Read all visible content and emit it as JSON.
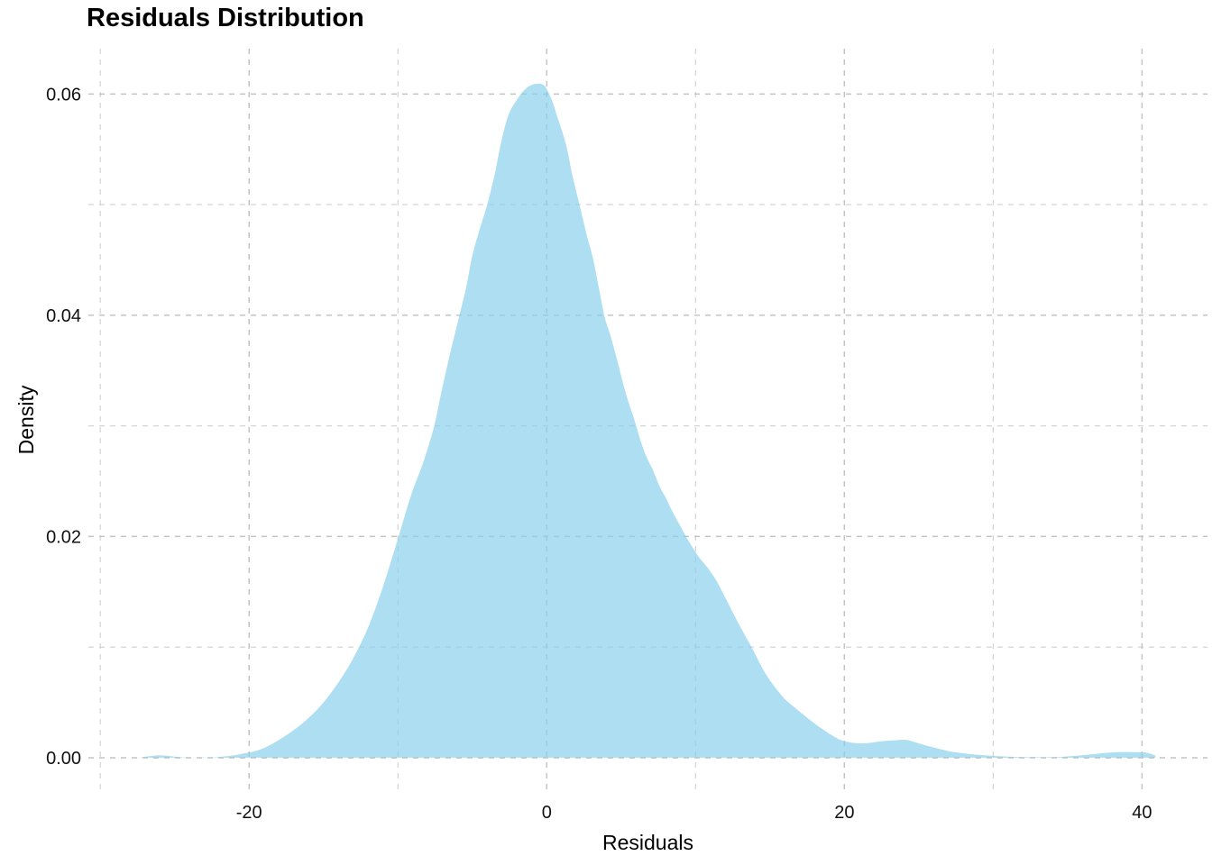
{
  "chart": {
    "title": "Residuals Distribution",
    "xlabel": "Residuals",
    "ylabel": "Density"
  },
  "chart_data": {
    "type": "area",
    "title": "Residuals Distribution",
    "xlabel": "Residuals",
    "ylabel": "Density",
    "legend": false,
    "grid": "dashed-major-and-minor",
    "background_color": "#ffffff",
    "gridline_color": "#c4c4c4",
    "fill_color": "#87CEEB",
    "fill_opacity": 0.68,
    "x_ticks": [
      -20,
      0,
      20,
      40
    ],
    "x_minor_ticks": [
      -30,
      -10,
      10,
      30
    ],
    "y_ticks": [
      0,
      0.02,
      0.04,
      0.06
    ],
    "y_tick_labels": [
      "0.00",
      "0.02",
      "0.04",
      "0.06"
    ],
    "y_minor_ticks": [
      0.01,
      0.03,
      0.05
    ],
    "xlim": [
      -30.8,
      44.4
    ],
    "ylim": [
      -0.0031,
      0.0641
    ],
    "peak": {
      "x": -0.8,
      "density": 0.061
    },
    "points": [
      [
        -27.3,
        2e-05
      ],
      [
        -26.9,
        0.0001
      ],
      [
        -26.3,
        0.0002
      ],
      [
        -25.7,
        0.0002
      ],
      [
        -25.0,
        0.0001
      ],
      [
        -24.3,
        3e-05
      ],
      [
        -23.4,
        2e-05
      ],
      [
        -22.4,
        4e-05
      ],
      [
        -21.8,
        0.0001
      ],
      [
        -21.0,
        0.00022
      ],
      [
        -20.3,
        0.0004
      ],
      [
        -19.6,
        0.0006
      ],
      [
        -18.8,
        0.001
      ],
      [
        -18.0,
        0.0016
      ],
      [
        -17.0,
        0.0025
      ],
      [
        -16.0,
        0.0036
      ],
      [
        -15.0,
        0.005
      ],
      [
        -14.0,
        0.0068
      ],
      [
        -13.0,
        0.009
      ],
      [
        -12.0,
        0.0118
      ],
      [
        -11.0,
        0.0155
      ],
      [
        -10.0,
        0.0198
      ],
      [
        -9.1,
        0.0238
      ],
      [
        -8.3,
        0.0267
      ],
      [
        -7.6,
        0.0298
      ],
      [
        -7.1,
        0.0329
      ],
      [
        -6.5,
        0.0365
      ],
      [
        -5.9,
        0.0398
      ],
      [
        -5.4,
        0.0426
      ],
      [
        -5.0,
        0.0454
      ],
      [
        -4.5,
        0.0478
      ],
      [
        -4.0,
        0.05
      ],
      [
        -3.5,
        0.0527
      ],
      [
        -3.1,
        0.0554
      ],
      [
        -2.6,
        0.058
      ],
      [
        -2.0,
        0.0595
      ],
      [
        -1.4,
        0.0605
      ],
      [
        -0.8,
        0.0609
      ],
      [
        -0.2,
        0.0608
      ],
      [
        0.3,
        0.0596
      ],
      [
        0.7,
        0.058
      ],
      [
        1.3,
        0.0554
      ],
      [
        1.7,
        0.0528
      ],
      [
        2.2,
        0.05
      ],
      [
        2.7,
        0.0472
      ],
      [
        3.1,
        0.0452
      ],
      [
        3.5,
        0.0425
      ],
      [
        3.9,
        0.0398
      ],
      [
        4.3,
        0.0381
      ],
      [
        4.8,
        0.0356
      ],
      [
        5.3,
        0.033
      ],
      [
        5.9,
        0.0305
      ],
      [
        6.3,
        0.0287
      ],
      [
        6.7,
        0.0272
      ],
      [
        7.1,
        0.0261
      ],
      [
        7.6,
        0.0245
      ],
      [
        8.0,
        0.0235
      ],
      [
        8.5,
        0.0221
      ],
      [
        9.0,
        0.0209
      ],
      [
        9.4,
        0.0199
      ],
      [
        9.9,
        0.0188
      ],
      [
        10.3,
        0.018
      ],
      [
        10.8,
        0.0172
      ],
      [
        11.4,
        0.016
      ],
      [
        12.1,
        0.0142
      ],
      [
        12.9,
        0.0121
      ],
      [
        13.8,
        0.0099
      ],
      [
        14.7,
        0.0076
      ],
      [
        15.8,
        0.0056
      ],
      [
        16.7,
        0.0045
      ],
      [
        17.9,
        0.0032
      ],
      [
        19.2,
        0.002
      ],
      [
        20.0,
        0.0015
      ],
      [
        21.2,
        0.0013
      ],
      [
        22.6,
        0.0015
      ],
      [
        23.5,
        0.00158
      ],
      [
        24.2,
        0.0016
      ],
      [
        25.0,
        0.0013
      ],
      [
        25.8,
        0.001
      ],
      [
        27.4,
        0.0005
      ],
      [
        29.2,
        0.00024
      ],
      [
        31.0,
        0.0001
      ],
      [
        32.5,
        5e-05
      ],
      [
        34.0,
        5e-05
      ],
      [
        34.8,
        0.0001
      ],
      [
        36.1,
        0.00024
      ],
      [
        37.3,
        0.0004
      ],
      [
        38.3,
        0.0005
      ],
      [
        39.5,
        0.0005
      ],
      [
        40.3,
        0.00045
      ],
      [
        40.9,
        0.0002
      ]
    ]
  }
}
